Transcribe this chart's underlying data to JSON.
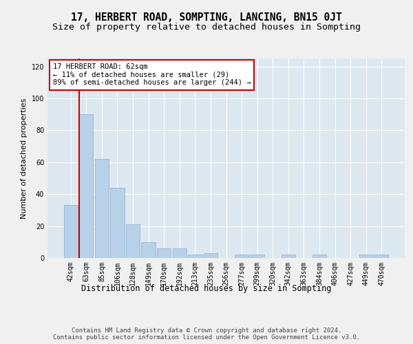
{
  "title": "17, HERBERT ROAD, SOMPTING, LANCING, BN15 0JT",
  "subtitle": "Size of property relative to detached houses in Sompting",
  "xlabel": "Distribution of detached houses by size in Sompting",
  "ylabel": "Number of detached properties",
  "bar_labels": [
    "42sqm",
    "63sqm",
    "85sqm",
    "106sqm",
    "128sqm",
    "149sqm",
    "170sqm",
    "192sqm",
    "213sqm",
    "235sqm",
    "256sqm",
    "277sqm",
    "299sqm",
    "320sqm",
    "342sqm",
    "363sqm",
    "384sqm",
    "406sqm",
    "427sqm",
    "449sqm",
    "470sqm"
  ],
  "bar_values": [
    33,
    90,
    62,
    44,
    21,
    10,
    6,
    6,
    2,
    3,
    0,
    2,
    2,
    0,
    2,
    0,
    2,
    0,
    0,
    2,
    2
  ],
  "bar_color": "#b8d0e8",
  "bar_edge_color": "#8ab0d0",
  "marker_line_color": "#cc0000",
  "annotation_text": "17 HERBERT ROAD: 62sqm\n← 11% of detached houses are smaller (29)\n89% of semi-detached houses are larger (244) →",
  "annotation_box_color": "#ffffff",
  "annotation_box_edge_color": "#cc0000",
  "ylim": [
    0,
    125
  ],
  "yticks": [
    0,
    20,
    40,
    60,
    80,
    100,
    120
  ],
  "fig_bg_color": "#f0f0f0",
  "plot_bg_color": "#dde8f0",
  "footer_text": "Contains HM Land Registry data © Crown copyright and database right 2024.\nContains public sector information licensed under the Open Government Licence v3.0.",
  "title_fontsize": 10.5,
  "subtitle_fontsize": 9.5,
  "xlabel_fontsize": 8.5,
  "ylabel_fontsize": 8,
  "tick_fontsize": 7,
  "footer_fontsize": 6.5,
  "annot_fontsize": 7.5
}
